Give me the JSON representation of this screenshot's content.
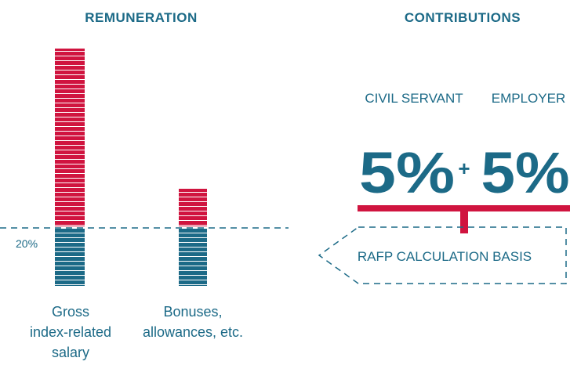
{
  "remuneration": {
    "title": "REMUNERATION",
    "threshold_label": "20%",
    "items": [
      {
        "label_lines": [
          "Gross",
          "index-related",
          "salary"
        ]
      },
      {
        "label_lines": [
          "Bonuses,",
          "allowances, etc."
        ]
      }
    ]
  },
  "contributions": {
    "title": "CONTRIBUTIONS",
    "parties": [
      {
        "name": "CIVIL SERVANT",
        "rate": "5%"
      },
      {
        "name": "EMPLOYER",
        "rate": "5%"
      }
    ],
    "plus": "+",
    "basis": "RAFP CALCULATION BASIS"
  }
}
